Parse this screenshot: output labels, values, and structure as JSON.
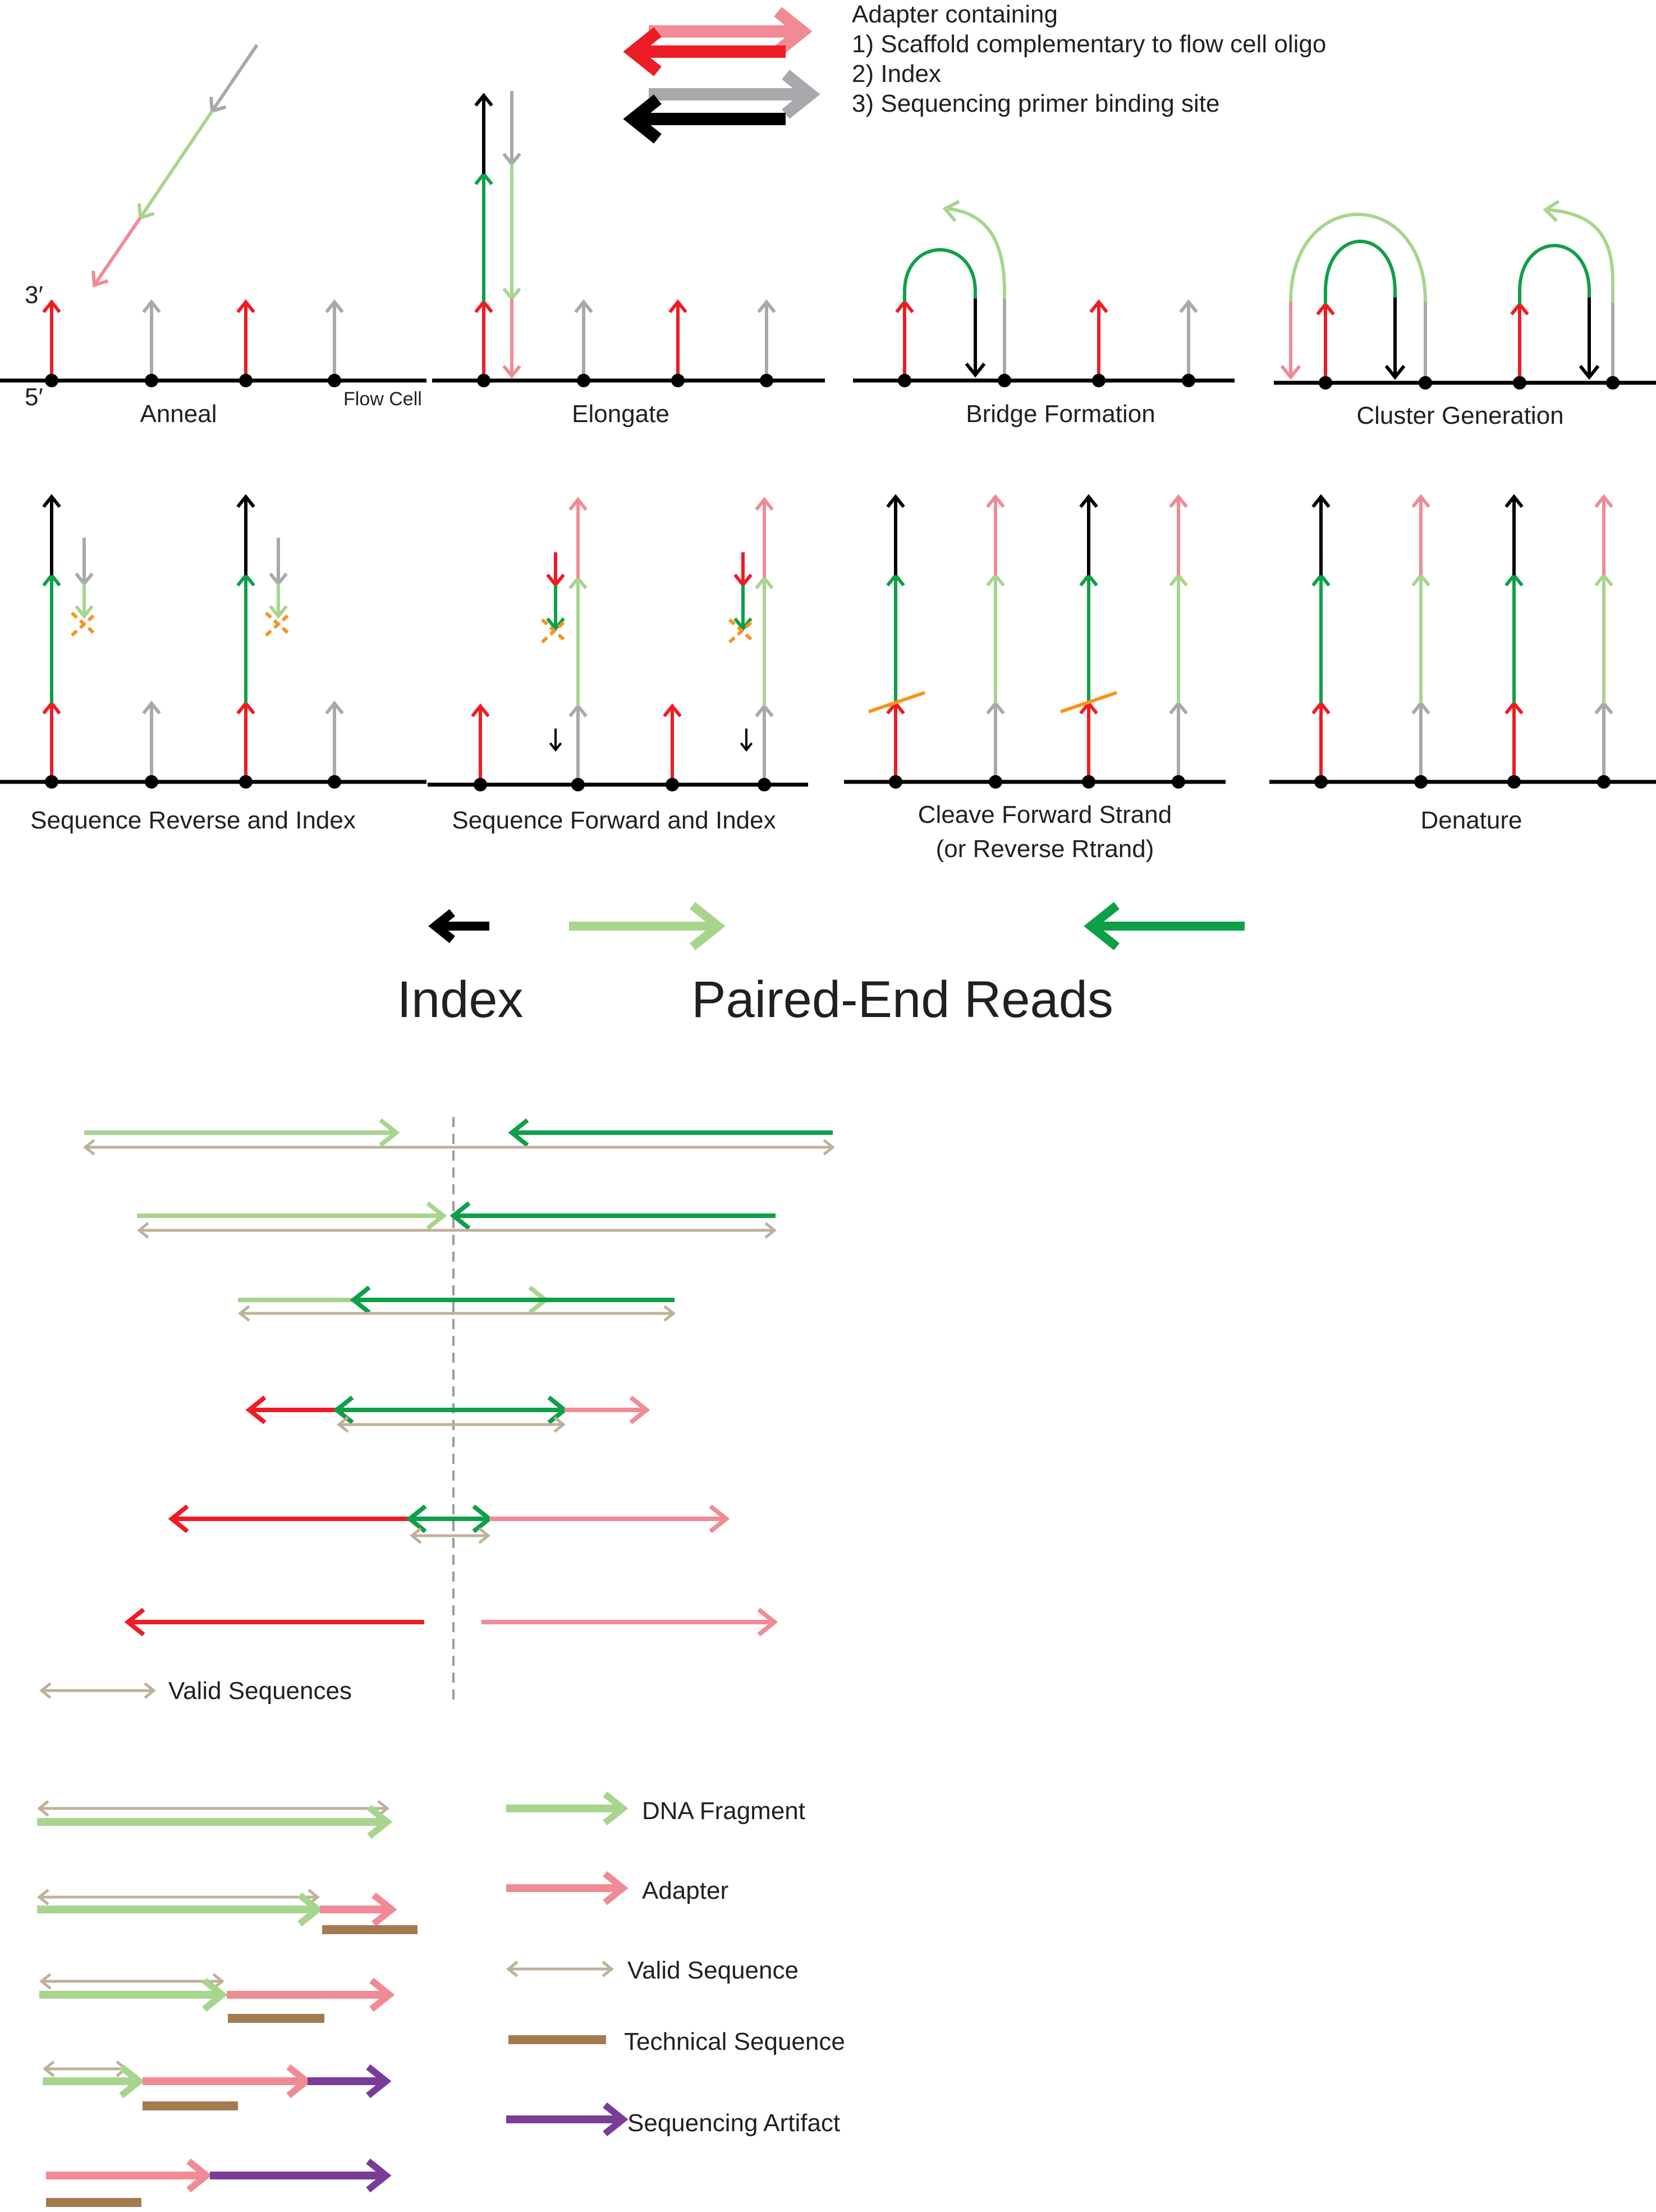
{
  "colors": {
    "red": "#ed1c24",
    "pink": "#f08b96",
    "black": "#000000",
    "gray": "#a7a9ac",
    "light_green": "#a8d58e",
    "dark_green": "#0f9f48",
    "tan": "#bfb199",
    "brown": "#a47a51",
    "purple": "#7b3c98",
    "orange": "#f7941d",
    "dash": "#9a9a9a"
  },
  "adapter_legend": {
    "title": "Adapter containing",
    "items": [
      "1) Scaffold complementary to flow cell oligo",
      "2) Index",
      "3) Sequencing primer binding site"
    ]
  },
  "panels": {
    "anneal": "Anneal",
    "elongate": "Elongate",
    "bridge": "Bridge Formation",
    "cluster": "Cluster Generation",
    "seq_reverse": "Sequence Reverse and Index",
    "seq_forward": "Sequence Forward and Index",
    "cleave_line1": "Cleave Forward Strand",
    "cleave_line2": "(or Reverse Rtrand)",
    "denature": "Denature"
  },
  "strand_labels": {
    "three_prime": "3′",
    "five_prime": "5′",
    "flow_cell": "Flow Cell"
  },
  "reads_legend": {
    "index": "Index",
    "paired_end": "Paired-End Reads"
  },
  "valid_sequences_label": "Valid Sequences",
  "fragment_legend": {
    "dna_fragment": "DNA Fragment",
    "adapter": "Adapter",
    "valid_sequence": "Valid Sequence",
    "technical_sequence": "Technical Sequence",
    "sequencing_artifact": "Sequencing Artifact"
  }
}
